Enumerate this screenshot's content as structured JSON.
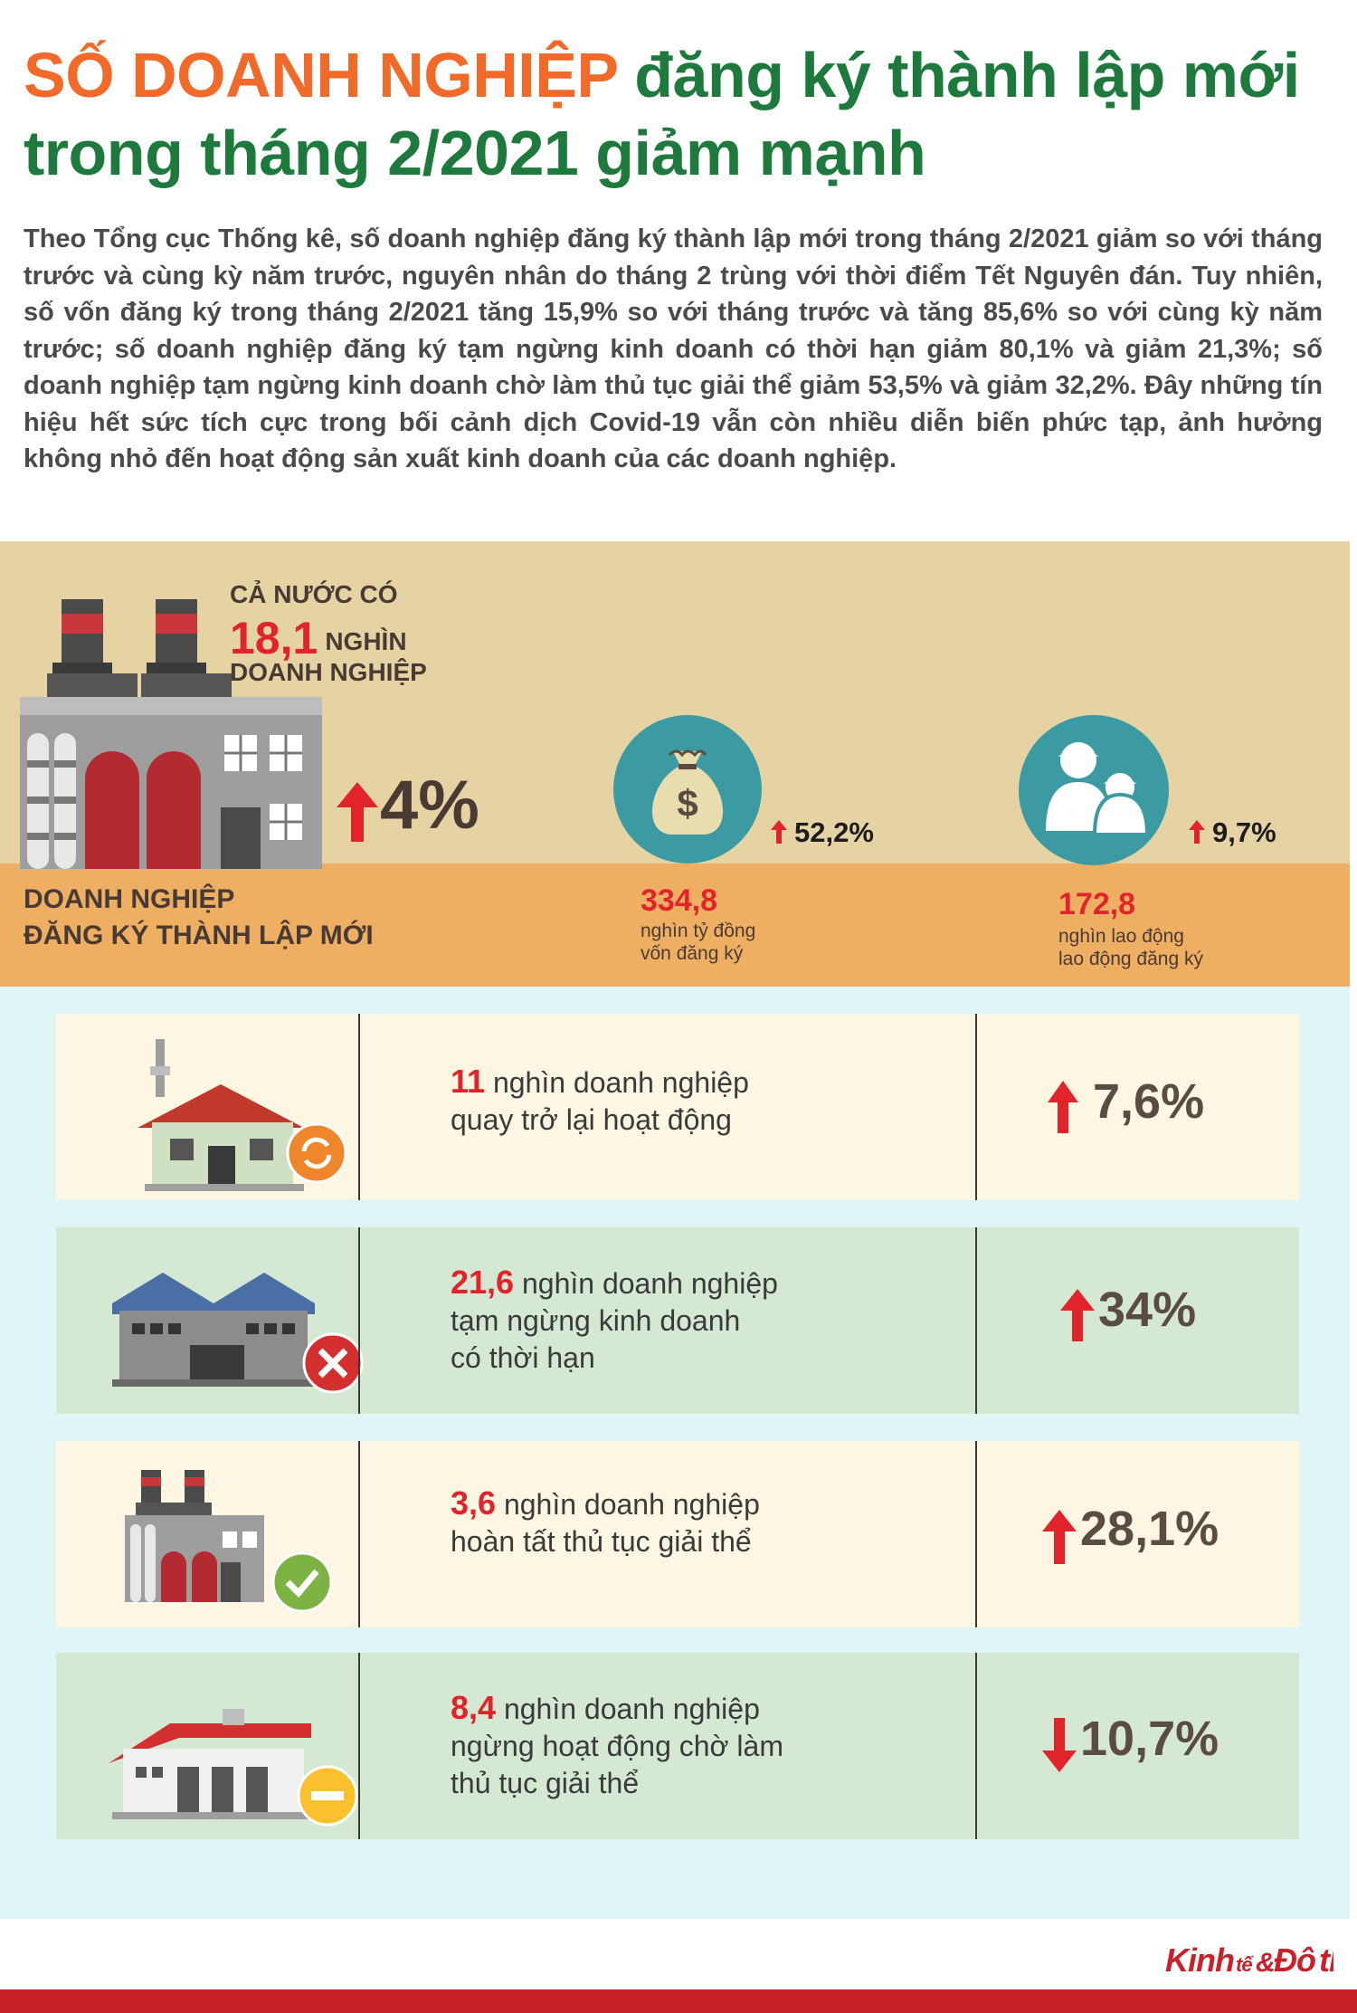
{
  "title": {
    "highlight": "SỐ DOANH NGHIỆP",
    "rest_line1": " đăng ký thành lập mới",
    "line2": "trong tháng 2/2021 giảm mạnh"
  },
  "intro": "Theo Tổng cục Thống kê, số doanh nghiệp đăng ký thành lập mới trong tháng 2/2021 giảm so với tháng trước và cùng kỳ năm trước, nguyên nhân do tháng 2 trùng với thời điểm Tết Nguyên đán. Tuy nhiên, số vốn đăng ký trong tháng 2/2021 tăng 15,9% so với tháng trước và tăng 85,6% so với cùng kỳ năm trước; số doanh nghiệp đăng ký tạm ngừng kinh doanh có thời hạn giảm 80,1% và giảm 21,3%; số doanh nghiệp tạm ngừng kinh doanh chờ làm thủ tục giải thể giảm 53,5% và giảm 32,2%. Đây những tín hiệu hết sức tích cực trong bối cảnh dịch Covid-19 vẫn còn nhiều diễn biến phức tạp, ảnh hưởng không nhỏ đến hoạt động sản xuất kinh doanh của các doanh nghiệp.",
  "summary": {
    "ca_nuoc": "CẢ NƯỚC CÓ",
    "number": "18,1",
    "unit": "NGHÌN",
    "label": "DOANH NGHIỆP",
    "pct": "4%",
    "band_title_line1": "DOANH NGHIỆP",
    "band_title_line2": "ĐĂNG KÝ THÀNH LẬP MỚI"
  },
  "capital": {
    "pct": "52,2%",
    "value": "334,8",
    "sub1": "nghìn tỷ đồng",
    "sub2": "vốn đăng ký",
    "icon": "money-bag-icon"
  },
  "labor": {
    "pct": "9,7%",
    "value": "172,8",
    "sub1": "nghìn lao động",
    "sub2": "lao động đăng ký",
    "icon": "workers-icon"
  },
  "rows": [
    {
      "num": "11",
      "line1": " nghìn doanh nghiệp",
      "line2": "quay trở lại hoạt động",
      "line3": "",
      "pct": "7,6%",
      "dir": "up",
      "bg": "#fdf6e3",
      "badge": "refresh-badge-icon"
    },
    {
      "num": "21,6",
      "line1": " nghìn doanh nghiệp",
      "line2": "tạm ngừng kinh doanh",
      "line3": "có thời hạn",
      "pct": "34%",
      "dir": "up",
      "bg": "#d5e8d3",
      "badge": "close-badge-icon"
    },
    {
      "num": "3,6",
      "line1": " nghìn doanh nghiệp",
      "line2": "hoàn tất thủ tục giải thể",
      "line3": "",
      "pct": "28,1%",
      "dir": "up",
      "bg": "#fdf6e3",
      "badge": "check-badge-icon"
    },
    {
      "num": "8,4",
      "line1": " nghìn doanh nghiệp",
      "line2": "ngừng hoạt động chờ làm",
      "line3": "thủ tục giải thể",
      "pct": "10,7%",
      "dir": "down",
      "bg": "#d5e8d3",
      "badge": "minus-badge-icon"
    }
  ],
  "footer": {
    "brand": "Kinh tế & Đô thị"
  },
  "colors": {
    "accent_red": "#e1232a",
    "title_green": "#1e7a3c",
    "title_orange": "#f26a2a"
  }
}
